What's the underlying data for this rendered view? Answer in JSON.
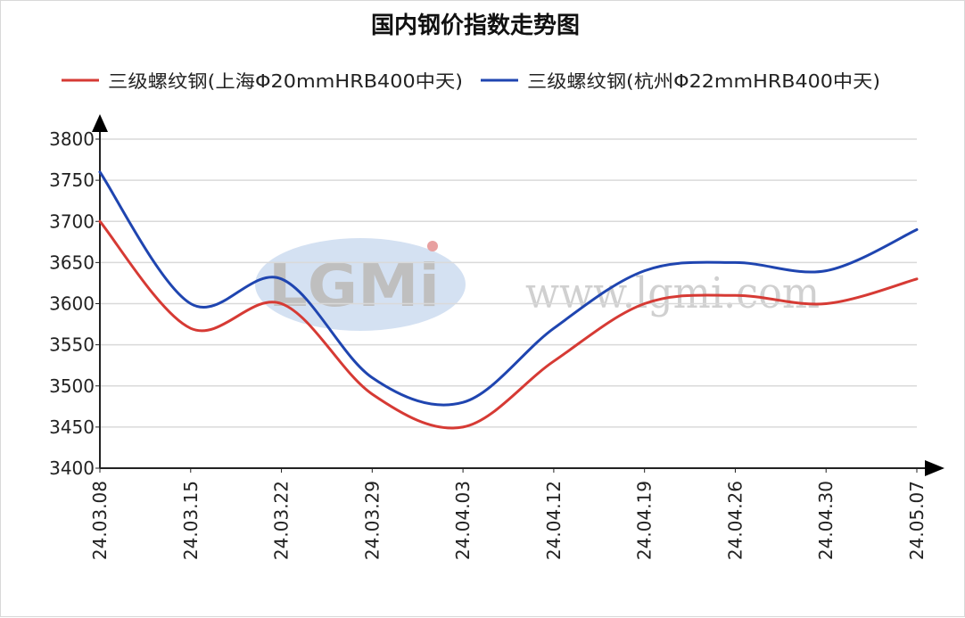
{
  "chart_data": {
    "type": "line",
    "title": "国内钢价指数走势图",
    "categories": [
      "24.03.08",
      "24.03.15",
      "24.03.22",
      "24.03.29",
      "24.04.03",
      "24.04.12",
      "24.04.19",
      "24.04.26",
      "24.04.30",
      "24.05.07"
    ],
    "series": [
      {
        "name": "三级螺纹钢(上海Φ20mmHRB400中天)",
        "color": "#d63a34",
        "values": [
          3700,
          3570,
          3600,
          3490,
          3450,
          3530,
          3600,
          3610,
          3600,
          3630
        ]
      },
      {
        "name": "三级螺纹钢(杭州Φ22mmHRB400中天)",
        "color": "#1f45b0",
        "values": [
          3760,
          3600,
          3630,
          3510,
          3480,
          3570,
          3640,
          3650,
          3640,
          3690
        ]
      }
    ],
    "yticks": [
      3400,
      3450,
      3500,
      3550,
      3600,
      3650,
      3700,
      3750,
      3800
    ],
    "ylim": [
      3400,
      3800
    ],
    "grid": true,
    "legend": "top",
    "smooth": true
  },
  "watermark": {
    "logo": "LGMi",
    "url": "www.lgmi.com"
  }
}
